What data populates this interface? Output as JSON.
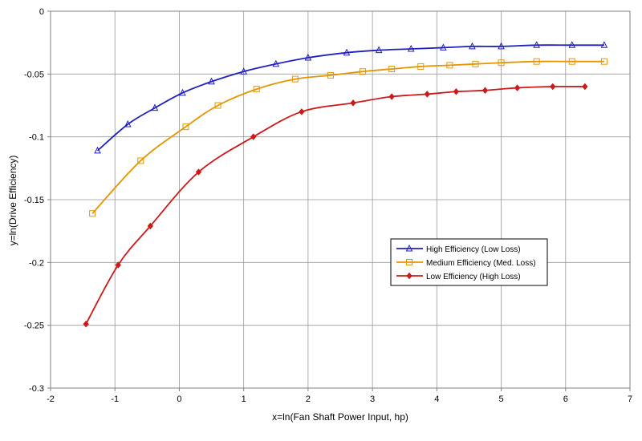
{
  "chart_data": {
    "type": "line",
    "title": "",
    "xlabel": "x=ln(Fan Shaft Power Input, hp)",
    "ylabel": "y=ln(Drive Efficiency)",
    "xlim": [
      -2,
      7
    ],
    "ylim": [
      -0.3,
      0
    ],
    "xticks": [
      -2,
      -1,
      0,
      1,
      2,
      3,
      4,
      5,
      6,
      7
    ],
    "yticks": [
      0,
      -0.05,
      -0.1,
      -0.15,
      -0.2,
      -0.25,
      -0.3
    ],
    "x_tick_labels": [
      "-2",
      "-1",
      "0",
      "1",
      "2",
      "3",
      "4",
      "5",
      "6",
      "7"
    ],
    "y_tick_labels": [
      "0",
      "-0.05",
      "-0.1",
      "-0.15",
      "-0.2",
      "-0.25",
      "-0.3"
    ],
    "grid": true,
    "legend_position": "center-right",
    "series": [
      {
        "name": "High Efficiency (Low Loss)",
        "color": "#1f1fbf",
        "marker": "triangle",
        "x": [
          -1.27,
          -0.8,
          -0.38,
          0.05,
          0.5,
          1.0,
          1.5,
          2.0,
          2.6,
          3.1,
          3.6,
          4.1,
          4.55,
          5.0,
          5.55,
          6.1,
          6.6
        ],
        "y": [
          -0.111,
          -0.09,
          -0.077,
          -0.065,
          -0.056,
          -0.048,
          -0.042,
          -0.037,
          -0.033,
          -0.031,
          -0.03,
          -0.029,
          -0.028,
          -0.028,
          -0.027,
          -0.027,
          -0.027
        ]
      },
      {
        "name": "Medium Efficiency (Med. Loss)",
        "color": "#e69500",
        "marker": "square",
        "x": [
          -1.35,
          -0.6,
          0.1,
          0.6,
          1.2,
          1.8,
          2.35,
          2.85,
          3.3,
          3.75,
          4.2,
          4.6,
          5.0,
          5.55,
          6.1,
          6.6
        ],
        "y": [
          -0.161,
          -0.119,
          -0.092,
          -0.075,
          -0.062,
          -0.054,
          -0.051,
          -0.048,
          -0.046,
          -0.044,
          -0.043,
          -0.042,
          -0.041,
          -0.04,
          -0.04,
          -0.04
        ]
      },
      {
        "name": "Low Efficiency (High Loss)",
        "color": "#cc1a1a",
        "marker": "diamond",
        "x": [
          -1.45,
          -0.95,
          -0.45,
          0.3,
          1.15,
          1.9,
          2.7,
          3.3,
          3.85,
          4.3,
          4.75,
          5.25,
          5.8,
          6.3
        ],
        "y": [
          -0.249,
          -0.202,
          -0.171,
          -0.128,
          -0.1,
          -0.08,
          -0.073,
          -0.068,
          -0.066,
          -0.064,
          -0.063,
          -0.061,
          -0.06,
          -0.06
        ]
      }
    ]
  }
}
